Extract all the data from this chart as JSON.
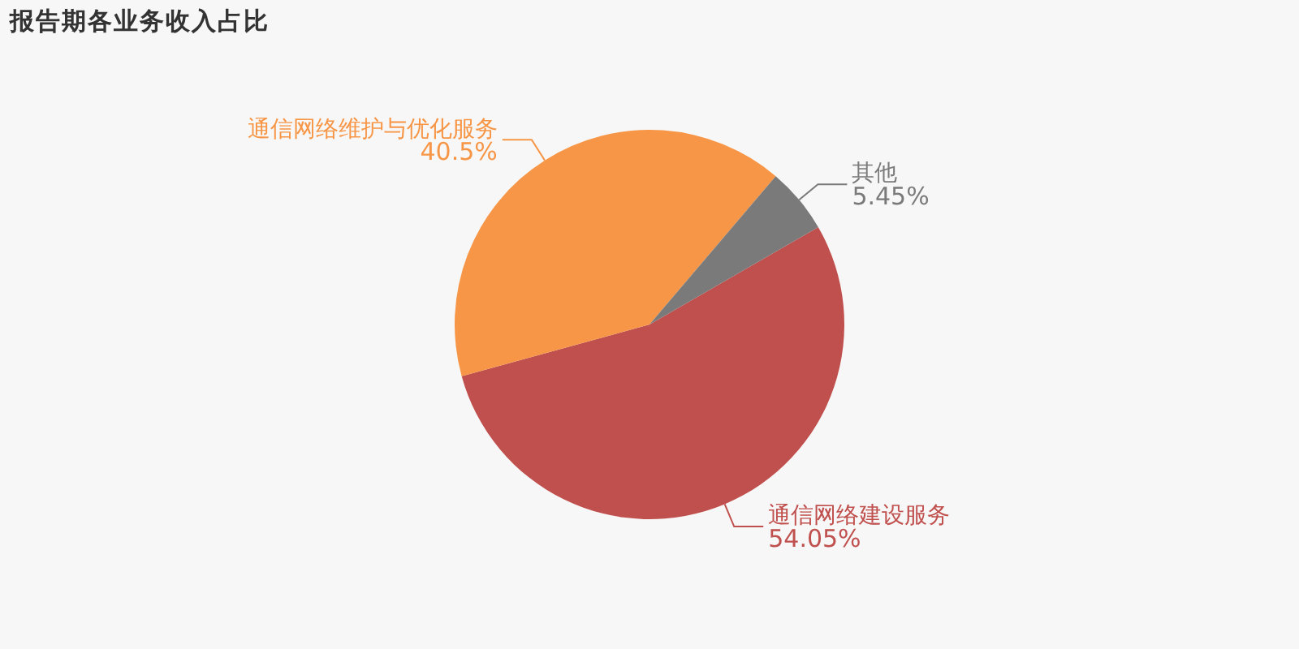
{
  "chart_data": {
    "type": "pie",
    "title": "报告期各业务收入占比",
    "categories": [
      "通信网络建设服务",
      "通信网络维护与优化服务",
      "其他"
    ],
    "values": [
      54.05,
      40.5,
      5.45
    ],
    "colors": [
      "#c0504d",
      "#f79646",
      "#7a7a7a"
    ],
    "value_labels": [
      "54.05%",
      "40.5%",
      "5.45%"
    ],
    "legend": false
  }
}
